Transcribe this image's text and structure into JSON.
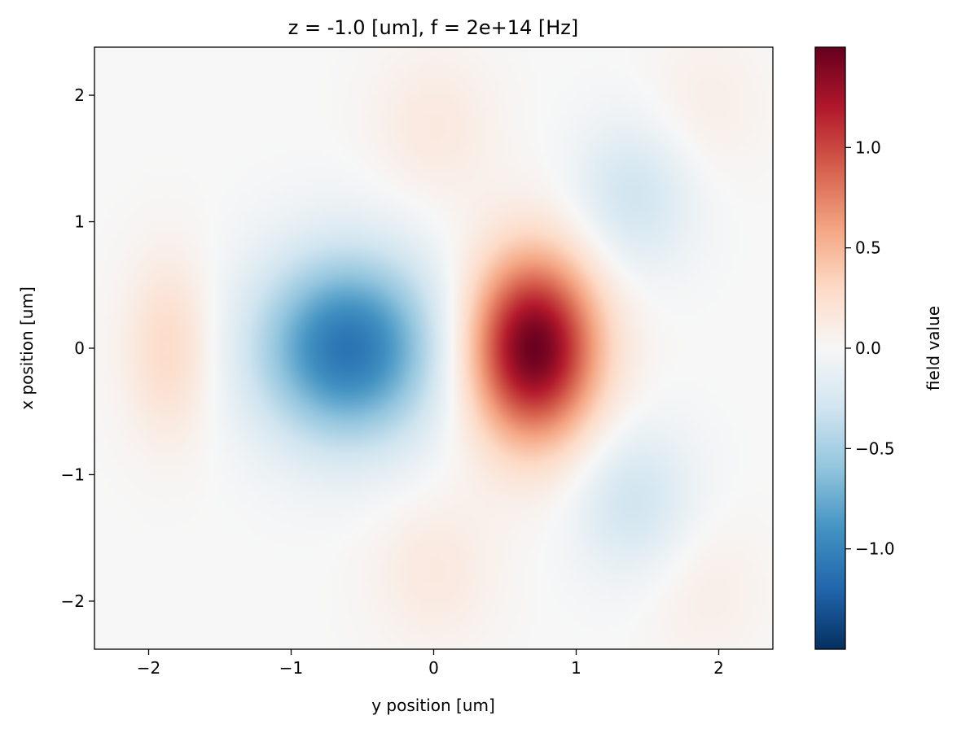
{
  "chart_data": {
    "type": "heatmap",
    "title": "z = -1.0 [um], f = 2e+14 [Hz]",
    "xlabel": "y position [um]",
    "ylabel": "x position [um]",
    "xlim": [
      -2.38,
      2.38
    ],
    "ylim": [
      -2.38,
      2.38
    ],
    "x_ticks": [
      -2,
      -1,
      0,
      1,
      2
    ],
    "x_tick_labels": [
      "−2",
      "−1",
      "0",
      "1",
      "2"
    ],
    "y_ticks": [
      -2,
      -1,
      0,
      1,
      2
    ],
    "y_tick_labels": [
      "−2",
      "−1",
      "0",
      "1",
      "2"
    ],
    "grid": false,
    "colormap": "RdBu_r",
    "colorbar": {
      "label": "field value",
      "range": [
        -1.5,
        1.5
      ],
      "ticks": [
        -1.0,
        -0.5,
        0.0,
        0.5,
        1.0
      ],
      "tick_labels": [
        "−1.0",
        "−0.5",
        "0.0",
        "0.5",
        "1.0"
      ]
    },
    "features": [
      {
        "y": 0.7,
        "x": 0.0,
        "value": 1.5
      },
      {
        "y": -0.6,
        "x": 0.0,
        "value": -1.1
      },
      {
        "y": -1.85,
        "x": 0.0,
        "value": 0.3
      },
      {
        "y": 1.4,
        "x": 1.2,
        "value": -0.3
      },
      {
        "y": 1.4,
        "x": -1.2,
        "value": -0.3
      },
      {
        "y": 0.0,
        "x": 1.75,
        "value": 0.15
      },
      {
        "y": 0.0,
        "x": -1.75,
        "value": 0.15
      },
      {
        "y": 1.9,
        "x": 1.9,
        "value": 0.1
      },
      {
        "y": 1.9,
        "x": -1.9,
        "value": 0.1
      }
    ]
  }
}
